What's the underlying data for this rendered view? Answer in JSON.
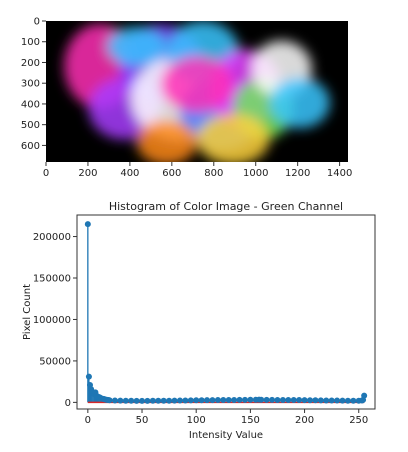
{
  "chart_data": [
    {
      "type": "image",
      "x_ticks": [
        "0",
        "200",
        "400",
        "600",
        "800",
        "1000",
        "1200",
        "1400"
      ],
      "y_ticks": [
        "0",
        "100",
        "200",
        "300",
        "400",
        "500",
        "600"
      ],
      "xlim": [
        0,
        1440
      ],
      "ylim": [
        680,
        0
      ],
      "colors": {
        "background": "#000000",
        "paint": [
          "#ff2db4",
          "#a83cff",
          "#2f7bff",
          "#38c7ff",
          "#ffffff",
          "#ffd23a",
          "#6ee65a",
          "#ff8a1a",
          "#e63aff",
          "#7a3cff"
        ]
      }
    },
    {
      "type": "stem",
      "title": "Histogram of Color Image - Green Channel",
      "xlabel": "Intensity Value",
      "ylabel": "Pixel Count",
      "xlim": [
        -10,
        265
      ],
      "ylim": [
        -8000,
        226000
      ],
      "x_ticks": [
        "0",
        "50",
        "100",
        "150",
        "200",
        "250"
      ],
      "y_ticks": [
        "0",
        "50000",
        "100000",
        "150000",
        "200000"
      ],
      "x_tick_values": [
        0,
        50,
        100,
        150,
        200,
        250
      ],
      "y_tick_values": [
        0,
        50000,
        100000,
        150000,
        200000
      ],
      "baseline": 0,
      "series": [
        {
          "points": [
            [
              0,
              215000
            ],
            [
              1,
              31000
            ],
            [
              2,
              21000
            ],
            [
              3,
              16000
            ],
            [
              4,
              13000
            ],
            [
              5,
              11000
            ],
            [
              6,
              10000
            ],
            [
              7,
              12000
            ],
            [
              8,
              8000
            ],
            [
              9,
              7000
            ],
            [
              10,
              6500
            ],
            [
              11,
              6000
            ],
            [
              12,
              5000
            ],
            [
              13,
              4500
            ],
            [
              14,
              4200
            ],
            [
              15,
              4000
            ],
            [
              16,
              3500
            ],
            [
              17,
              3200
            ],
            [
              18,
              3000
            ],
            [
              19,
              2800
            ],
            [
              20,
              2600
            ],
            [
              25,
              2300
            ],
            [
              30,
              2100
            ],
            [
              35,
              2000
            ],
            [
              40,
              1900
            ],
            [
              45,
              1800
            ],
            [
              50,
              1800
            ],
            [
              55,
              1800
            ],
            [
              60,
              1900
            ],
            [
              65,
              1900
            ],
            [
              70,
              2000
            ],
            [
              75,
              2000
            ],
            [
              80,
              2100
            ],
            [
              85,
              2200
            ],
            [
              90,
              2300
            ],
            [
              95,
              2400
            ],
            [
              100,
              2500
            ],
            [
              105,
              2600
            ],
            [
              110,
              2700
            ],
            [
              115,
              2700
            ],
            [
              120,
              2800
            ],
            [
              125,
              2800
            ],
            [
              130,
              2900
            ],
            [
              135,
              2900
            ],
            [
              140,
              3000
            ],
            [
              145,
              3000
            ],
            [
              150,
              3100
            ],
            [
              155,
              3200
            ],
            [
              158,
              3300
            ],
            [
              160,
              3100
            ],
            [
              165,
              3000
            ],
            [
              170,
              3000
            ],
            [
              175,
              2900
            ],
            [
              180,
              2900
            ],
            [
              185,
              2900
            ],
            [
              190,
              2800
            ],
            [
              195,
              2800
            ],
            [
              200,
              2700
            ],
            [
              205,
              2600
            ],
            [
              210,
              2500
            ],
            [
              215,
              2400
            ],
            [
              220,
              2300
            ],
            [
              225,
              2300
            ],
            [
              230,
              2200
            ],
            [
              235,
              2100
            ],
            [
              240,
              2000
            ],
            [
              245,
              2000
            ],
            [
              250,
              2000
            ],
            [
              253,
              2200
            ],
            [
              254,
              3000
            ],
            [
              255,
              8200
            ]
          ],
          "color": "#1f77b4"
        }
      ],
      "baseline_color": "#d62728"
    }
  ]
}
